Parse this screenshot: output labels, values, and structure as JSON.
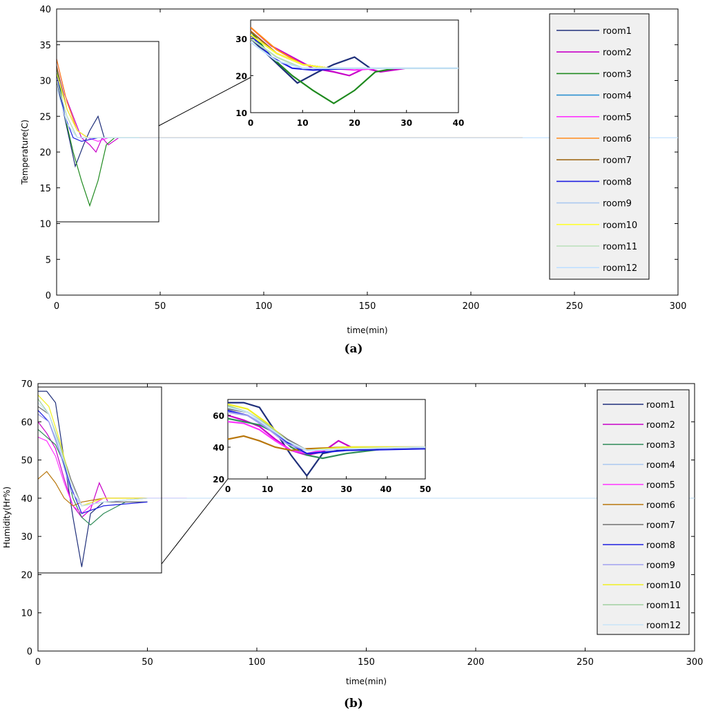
{
  "figure": {
    "panel_a_caption": "(a)",
    "panel_b_caption": "(b)"
  },
  "chart_data": [
    {
      "type": "line",
      "xlabel": "time(min)",
      "ylabel": "Temperature(C)",
      "xlim": [
        0,
        300
      ],
      "ylim": [
        0,
        40
      ],
      "xticks": [
        "0",
        "50",
        "100",
        "150",
        "200",
        "250",
        "300"
      ],
      "yticks": [
        "0",
        "5",
        "10",
        "15",
        "20",
        "25",
        "30",
        "35",
        "40"
      ],
      "legend_position": "top-right",
      "series": [
        {
          "name": "room1",
          "color": "#1f2f7a",
          "x": [
            0,
            3,
            6,
            9,
            13,
            16,
            20,
            23,
            30,
            40
          ],
          "y": [
            30,
            26,
            22,
            18,
            21,
            23,
            25,
            22,
            22,
            22
          ]
        },
        {
          "name": "room2",
          "color": "#c800c8",
          "x": [
            0,
            4,
            8,
            12,
            16,
            19,
            22,
            25,
            30,
            40
          ],
          "y": [
            33,
            28,
            25,
            22,
            21,
            20,
            22,
            21,
            22,
            22
          ]
        },
        {
          "name": "room3",
          "color": "#1f8a1f",
          "x": [
            0,
            4,
            8,
            12,
            16,
            20,
            24,
            28,
            35,
            40
          ],
          "y": [
            32,
            25,
            20,
            16,
            12.5,
            16,
            21,
            22,
            22,
            22
          ]
        },
        {
          "name": "room4",
          "color": "#2a8fd0",
          "x": [
            0,
            5,
            10,
            15,
            20,
            30,
            40
          ],
          "y": [
            31,
            26,
            23,
            22,
            22,
            22,
            22
          ]
        },
        {
          "name": "room5",
          "color": "#ff33ff",
          "x": [
            0,
            5,
            10,
            15,
            20,
            25,
            40
          ],
          "y": [
            32,
            26,
            23,
            22,
            21.5,
            22,
            22
          ]
        },
        {
          "name": "room6",
          "color": "#ff8c1a",
          "x": [
            0,
            5,
            10,
            15,
            20,
            40,
            225
          ],
          "y": [
            33,
            27,
            23,
            22,
            22,
            22,
            22
          ]
        },
        {
          "name": "room7",
          "color": "#a06a1a",
          "x": [
            0,
            5,
            10,
            15,
            20,
            40
          ],
          "y": [
            32,
            26,
            23,
            22,
            22,
            22
          ]
        },
        {
          "name": "room8",
          "color": "#1e1ee0",
          "x": [
            0,
            4,
            8,
            12,
            20,
            40
          ],
          "y": [
            31,
            25,
            22,
            21.5,
            22,
            22
          ]
        },
        {
          "name": "room9",
          "color": "#aac8f0",
          "x": [
            0,
            5,
            10,
            15,
            40
          ],
          "y": [
            30,
            25,
            22,
            22,
            22
          ]
        },
        {
          "name": "room10",
          "color": "#ffff33",
          "x": [
            0,
            5,
            10,
            15,
            40
          ],
          "y": [
            31,
            26,
            23,
            22,
            22
          ]
        },
        {
          "name": "room11",
          "color": "#b8e0b8",
          "x": [
            0,
            5,
            10,
            15,
            40
          ],
          "y": [
            30,
            25,
            22,
            22,
            22
          ]
        },
        {
          "name": "room12",
          "color": "#bfdfff",
          "x": [
            0,
            5,
            10,
            15,
            40,
            300
          ],
          "y": [
            29,
            24,
            22,
            22,
            22,
            22
          ]
        }
      ],
      "inset": {
        "xlim": [
          0,
          40
        ],
        "ylim": [
          10,
          35
        ],
        "xticks": [
          "0",
          "10",
          "20",
          "30",
          "40"
        ],
        "yticks": [
          "10",
          "20",
          "30"
        ],
        "source_window": {
          "xlim": [
            0,
            50
          ],
          "ylim": [
            10,
            35.3
          ]
        }
      }
    },
    {
      "type": "line",
      "xlabel": "time(min)",
      "ylabel": "Humidity(Hr%)",
      "xlim": [
        0,
        300
      ],
      "ylim": [
        0,
        70
      ],
      "xticks": [
        "0",
        "50",
        "100",
        "150",
        "200",
        "250",
        "300"
      ],
      "yticks": [
        "0",
        "10",
        "20",
        "30",
        "40",
        "50",
        "60",
        "70"
      ],
      "legend_position": "top-right",
      "series": [
        {
          "name": "room1",
          "color": "#1f2f7a",
          "x": [
            0,
            4,
            8,
            12,
            16,
            20,
            24,
            30,
            38
          ],
          "y": [
            68,
            68,
            65,
            50,
            35,
            22,
            36,
            39,
            39
          ]
        },
        {
          "name": "room2",
          "color": "#c800c8",
          "x": [
            0,
            4,
            8,
            12,
            16,
            20,
            24,
            28,
            32,
            38
          ],
          "y": [
            60,
            57,
            53,
            45,
            38,
            35,
            37,
            44,
            39,
            39
          ]
        },
        {
          "name": "room3",
          "color": "#2e8b57",
          "x": [
            0,
            4,
            8,
            12,
            16,
            20,
            24,
            30,
            40,
            50
          ],
          "y": [
            58,
            56,
            54,
            49,
            40,
            35,
            33,
            36,
            39,
            39
          ]
        },
        {
          "name": "room4",
          "color": "#aac8f0",
          "x": [
            0,
            5,
            10,
            15,
            20,
            30,
            50
          ],
          "y": [
            62,
            60,
            53,
            44,
            38,
            40,
            40
          ]
        },
        {
          "name": "room5",
          "color": "#ff33ff",
          "x": [
            0,
            4,
            8,
            12,
            16,
            20,
            24,
            30,
            68
          ],
          "y": [
            56,
            55,
            51,
            44,
            38,
            36,
            38,
            40,
            40
          ]
        },
        {
          "name": "room6",
          "color": "#b8760a",
          "x": [
            0,
            4,
            8,
            12,
            16,
            20,
            30,
            50
          ],
          "y": [
            45,
            47,
            44,
            40,
            38,
            39,
            40,
            40
          ]
        },
        {
          "name": "room7",
          "color": "#707070",
          "x": [
            0,
            5,
            10,
            15,
            20,
            30,
            50
          ],
          "y": [
            64,
            62,
            54,
            45,
            38,
            39,
            39
          ]
        },
        {
          "name": "room8",
          "color": "#1e1ee0",
          "x": [
            0,
            5,
            10,
            15,
            20,
            30,
            50
          ],
          "y": [
            63,
            60,
            52,
            43,
            36,
            38,
            39
          ]
        },
        {
          "name": "room9",
          "color": "#a0a0f0",
          "x": [
            0,
            5,
            10,
            15,
            20,
            30,
            50
          ],
          "y": [
            62,
            60,
            52,
            42,
            38,
            39,
            40
          ]
        },
        {
          "name": "room10",
          "color": "#f0f020",
          "x": [
            0,
            5,
            10,
            15,
            20,
            30,
            50
          ],
          "y": [
            67,
            64,
            55,
            44,
            38,
            40,
            40
          ]
        },
        {
          "name": "room11",
          "color": "#a0d0a0",
          "x": [
            0,
            5,
            10,
            15,
            20,
            30,
            50
          ],
          "y": [
            66,
            62,
            54,
            44,
            38,
            39,
            40
          ]
        },
        {
          "name": "room12",
          "color": "#c8e4f8",
          "x": [
            0,
            5,
            10,
            15,
            20,
            30,
            50,
            300
          ],
          "y": [
            65,
            62,
            53,
            44,
            38,
            39,
            40,
            40
          ]
        }
      ],
      "inset": {
        "xlim": [
          0,
          50
        ],
        "ylim": [
          20,
          70
        ],
        "xticks": [
          "0",
          "10",
          "20",
          "30",
          "40",
          "50"
        ],
        "yticks": [
          "20",
          "40",
          "60"
        ],
        "source_window": {
          "xlim": [
            0,
            56.5
          ],
          "ylim": [
            20,
            68.6
          ]
        }
      }
    }
  ]
}
